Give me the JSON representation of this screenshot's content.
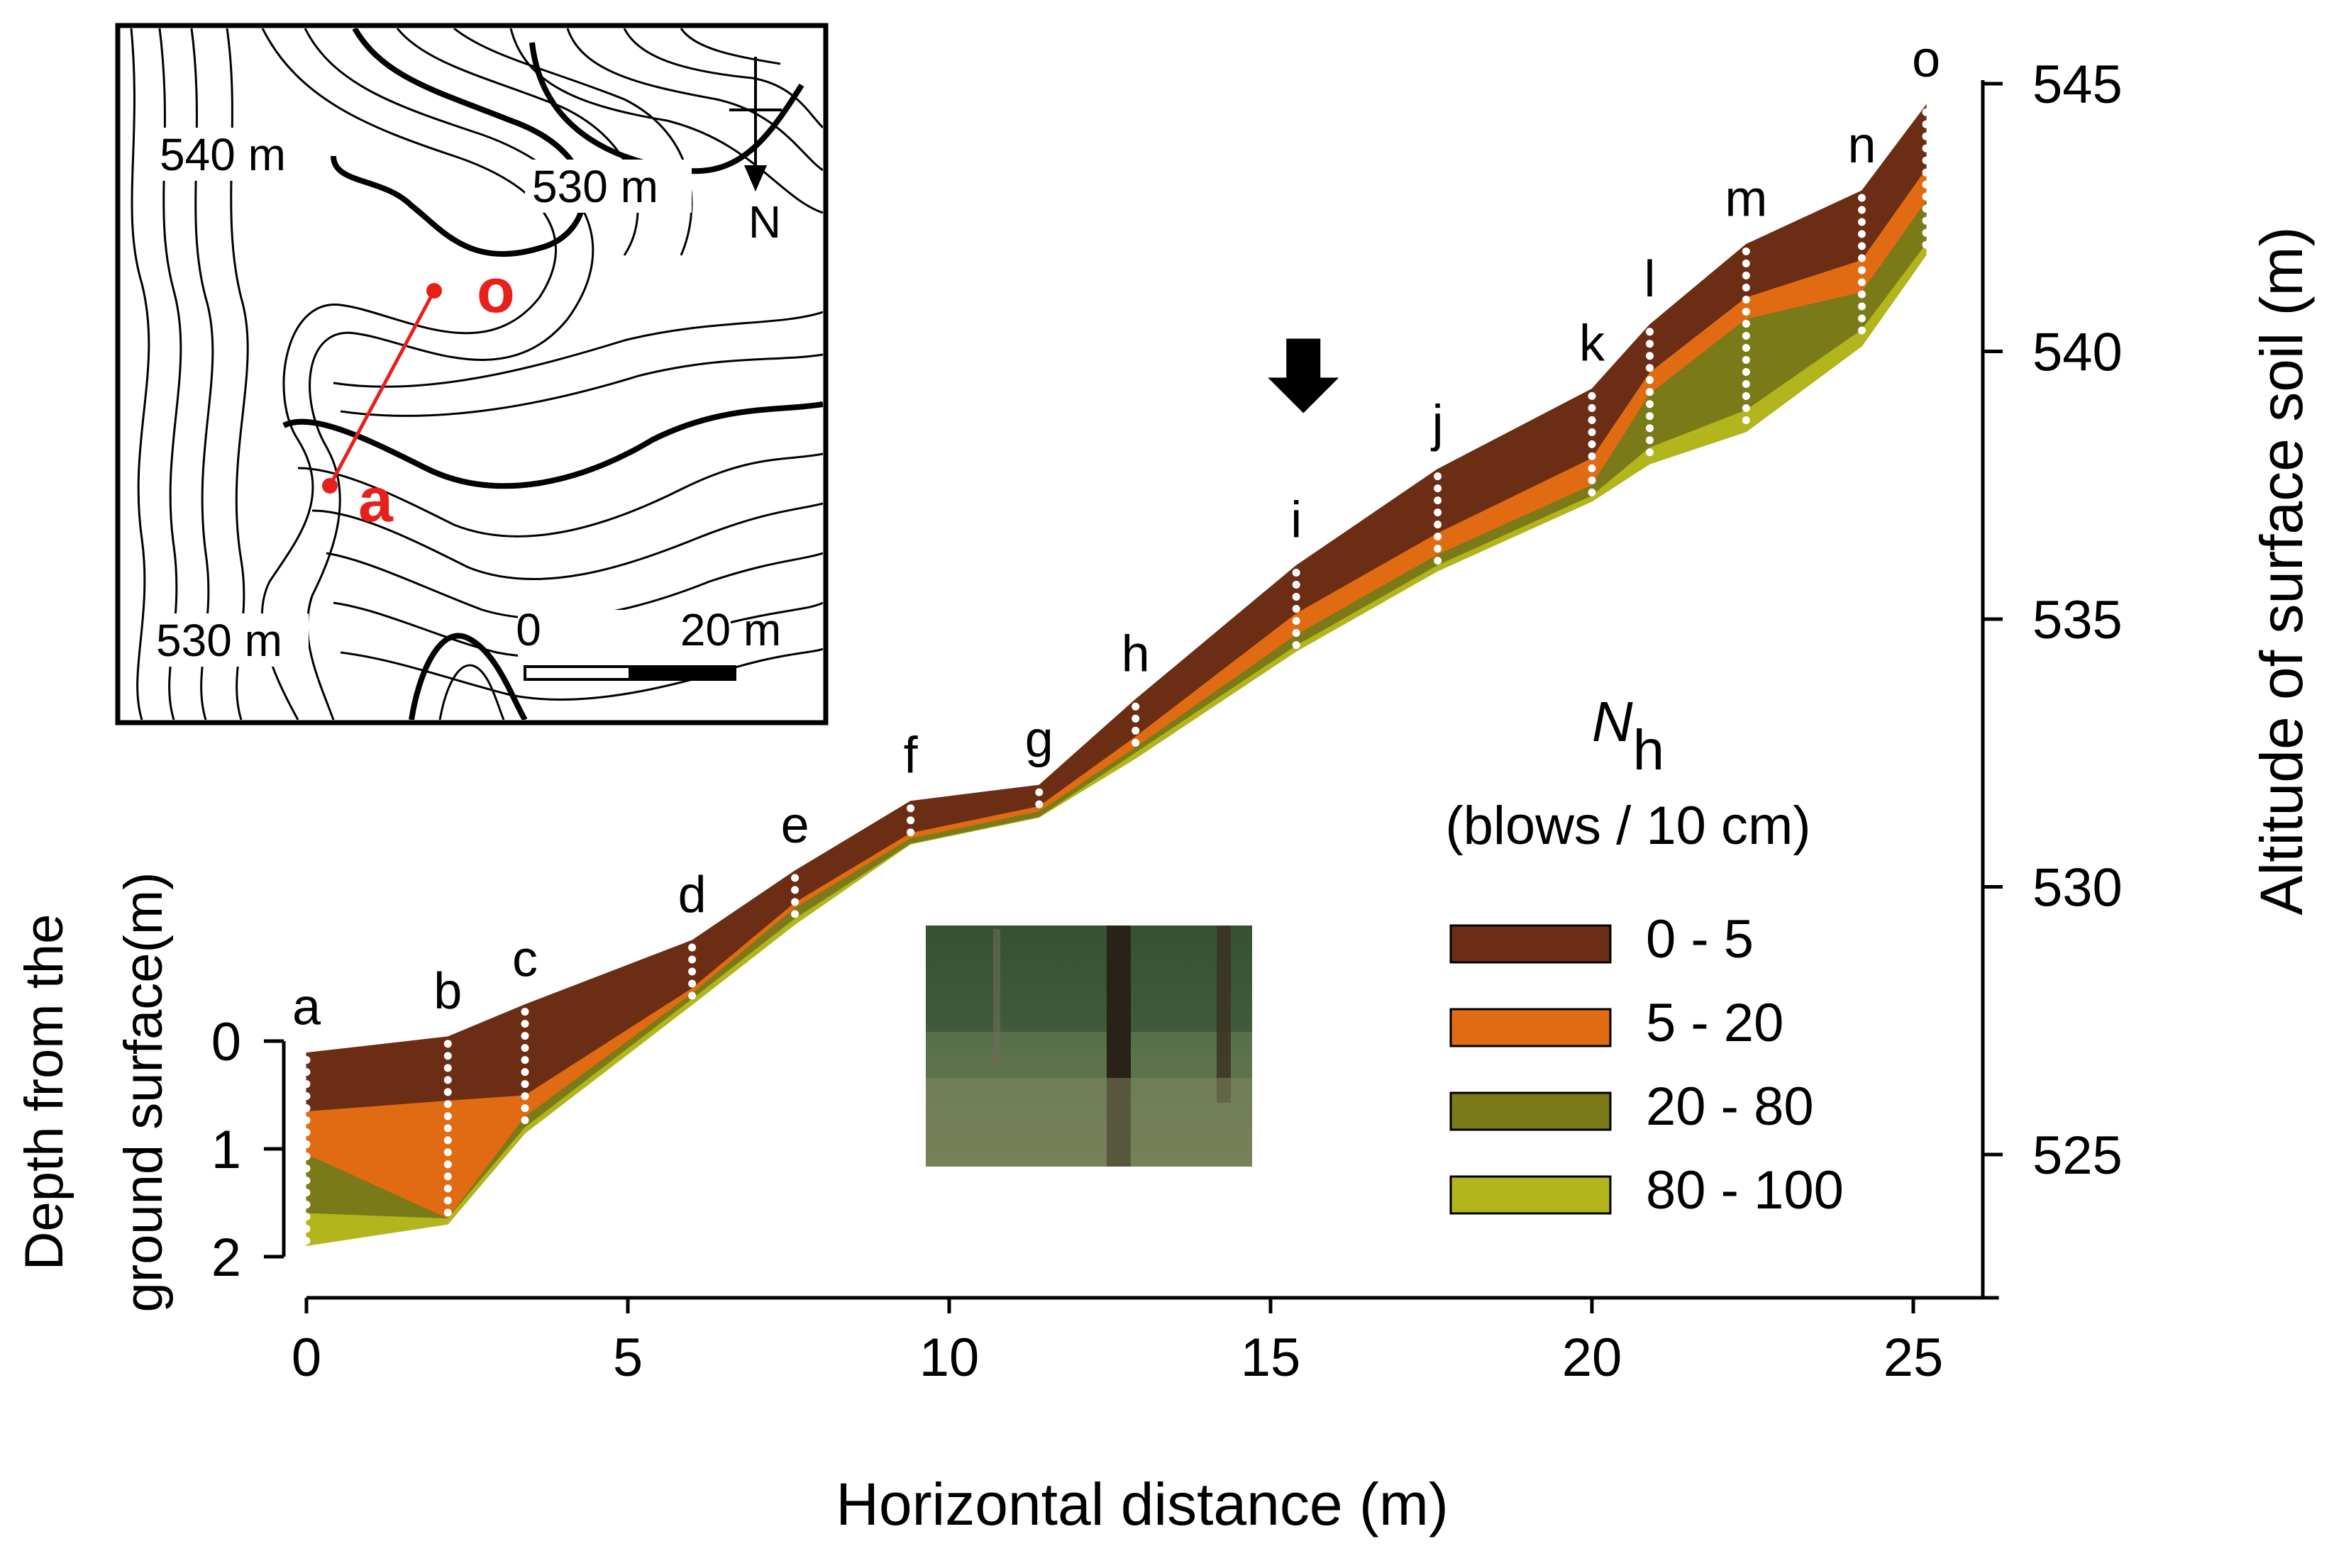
{
  "chart_data": {
    "type": "area",
    "xlabel": "Horizontal distance (m)",
    "ylabel_right": "Altitude of surface soil (m)",
    "ylabel_left_line1": "Depth from the",
    "ylabel_left_line2": "ground surface(m)",
    "xlim": [
      0,
      26
    ],
    "ylim": [
      522,
      546
    ],
    "x_ticks": [
      0,
      5,
      10,
      15,
      20,
      25
    ],
    "x_tick_labels": [
      "0",
      "5",
      "10",
      "15",
      "20",
      "25"
    ],
    "y_ticks": [
      525,
      530,
      535,
      540,
      545
    ],
    "y_tick_labels": [
      "525",
      "530",
      "535",
      "540",
      "545"
    ],
    "depth_ticks": [
      0,
      1,
      2
    ],
    "depth_tick_labels": [
      "0",
      "1",
      "2"
    ],
    "grid": false,
    "legend": {
      "title_main": "N",
      "title_sub": "h",
      "subtitle": "(blows / 10 cm)",
      "position": "right"
    },
    "points": [
      "a",
      "b",
      "c",
      "d",
      "e",
      "f",
      "g",
      "h",
      "i",
      "j",
      "k",
      "l",
      "m",
      "n",
      "o"
    ],
    "x": [
      0,
      2.2,
      3.4,
      6.0,
      7.6,
      9.4,
      11.4,
      12.9,
      15.4,
      17.6,
      20.0,
      20.9,
      22.4,
      24.2,
      25.2
    ],
    "surface": [
      526.9,
      527.2,
      527.8,
      529.0,
      530.3,
      531.6,
      531.9,
      533.5,
      536.0,
      537.8,
      539.3,
      540.5,
      542.0,
      543.0,
      544.6
    ],
    "series": [
      {
        "name": "0 - 5",
        "color": "#6b2d14",
        "bottom": [
          525.8,
          526.0,
          526.1,
          528.1,
          529.7,
          531.0,
          531.5,
          532.8,
          535.1,
          536.6,
          538.0,
          539.6,
          541.0,
          541.7,
          543.4
        ]
      },
      {
        "name": "5 - 20",
        "color": "#e06b12",
        "bottom": [
          525.0,
          523.8,
          525.7,
          528.0,
          529.6,
          530.9,
          531.4,
          532.6,
          534.7,
          536.2,
          537.5,
          539.2,
          540.6,
          541.1,
          542.8
        ]
      },
      {
        "name": "20 - 80",
        "color": "#7a7a18",
        "bottom": [
          523.9,
          523.8,
          525.5,
          527.9,
          529.4,
          530.8,
          531.3,
          532.5,
          534.5,
          536.0,
          537.3,
          538.2,
          538.9,
          540.4,
          542.0
        ]
      },
      {
        "name": "80 - 100",
        "color": "#b3b51c",
        "bottom": [
          523.3,
          523.7,
          525.4,
          527.8,
          529.3,
          530.8,
          531.3,
          532.4,
          534.4,
          535.9,
          537.2,
          537.9,
          538.5,
          540.1,
          541.8
        ]
      }
    ],
    "arrow_at_point": "i",
    "inset_map": {
      "contour_labels": [
        "540 m",
        "530 m",
        "530 m"
      ],
      "north_label": "N",
      "point_labels": [
        "o",
        "a"
      ],
      "route_color": "#e8201c",
      "scale_labels": [
        "0",
        "20 m"
      ]
    },
    "photo": {
      "name": "forest-photo"
    }
  }
}
